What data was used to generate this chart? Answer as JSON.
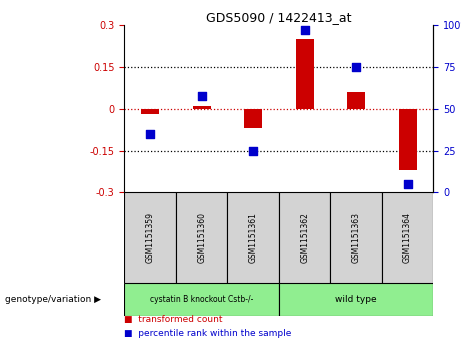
{
  "title": "GDS5090 / 1422413_at",
  "samples": [
    "GSM1151359",
    "GSM1151360",
    "GSM1151361",
    "GSM1151362",
    "GSM1151363",
    "GSM1151364"
  ],
  "red_values": [
    -0.02,
    0.01,
    -0.07,
    0.25,
    0.06,
    -0.22
  ],
  "blue_values": [
    35,
    58,
    25,
    97,
    75,
    5
  ],
  "ylim_left": [
    -0.3,
    0.3
  ],
  "ylim_right": [
    0,
    100
  ],
  "yticks_left": [
    -0.3,
    -0.15,
    0,
    0.15,
    0.3
  ],
  "yticks_right": [
    0,
    25,
    50,
    75,
    100
  ],
  "ytick_right_labels": [
    "0",
    "25",
    "50",
    "75",
    "100%"
  ],
  "hline_values": [
    -0.15,
    0.0,
    0.15
  ],
  "group1_label": "cystatin B knockout Cstb-/-",
  "group2_label": "wild type",
  "group_color": "#90EE90",
  "sample_bg_color": "#d3d3d3",
  "genotype_label": "genotype/variation",
  "arrow": "▶",
  "legend_red": "transformed count",
  "legend_blue": "percentile rank within the sample",
  "bar_color": "#cc0000",
  "dot_color": "#0000cc",
  "bar_width": 0.35,
  "dot_size": 30,
  "left_color": "#cc0000",
  "right_color": "#0000cc"
}
